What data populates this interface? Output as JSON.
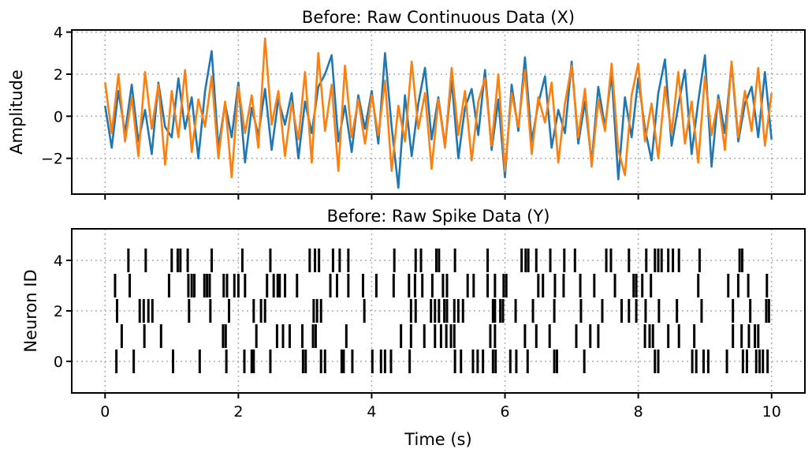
{
  "chart_data": [
    {
      "type": "line",
      "title": "Before: Raw Continuous Data (X)",
      "xlabel": "",
      "ylabel": "Amplitude",
      "xlim": [
        -0.5,
        10.5
      ],
      "ylim": [
        -3.7,
        4.1
      ],
      "xticks": [
        0,
        2,
        4,
        6,
        8,
        10
      ],
      "xtick_labels_shown": false,
      "yticks": [
        4,
        2,
        0,
        -2
      ],
      "ytick_labels": [
        "4",
        "2",
        "0",
        "−2"
      ],
      "grid": true,
      "x_start": 0,
      "x_step": 0.1,
      "series": [
        {
          "color": "#1f77b4",
          "values": [
            0.5,
            -1.5,
            1.2,
            -0.8,
            1.5,
            -1.2,
            0.3,
            -1.8,
            1.6,
            -0.5,
            -1.0,
            1.8,
            -0.6,
            0.9,
            -2.0,
            1.2,
            3.1,
            -1.5,
            0.6,
            -1.0,
            1.6,
            -2.2,
            0.4,
            -0.9,
            1.3,
            -1.6,
            0.8,
            -0.4,
            1.1,
            -2.0,
            0.7,
            -0.8,
            1.4,
            2.0,
            2.9,
            -1.2,
            0.5,
            -1.7,
            1.0,
            -0.6,
            1.2,
            -1.3,
            3.0,
            -0.5,
            -3.4,
            1.0,
            -1.9,
            0.6,
            2.3,
            -1.1,
            0.9,
            -1.4,
            1.7,
            -2.0,
            0.4,
            1.3,
            -0.9,
            2.2,
            -1.6,
            0.8,
            -2.9,
            1.5,
            -0.7,
            2.8,
            -1.2,
            0.6,
            1.9,
            -1.5,
            0.3,
            -0.8,
            2.6,
            -1.3,
            0.7,
            -2.2,
            1.4,
            -0.5,
            2.0,
            -3.0,
            0.9,
            -1.0,
            1.8,
            -0.6,
            -2.1,
            1.1,
            2.7,
            -1.4,
            0.5,
            2.2,
            -1.8,
            0.7,
            2.9,
            -2.4,
            1.0,
            -0.8,
            2.5,
            -1.2,
            0.6,
            1.4,
            -1.0,
            2.1,
            -1.1
          ]
        },
        {
          "color": "#ff7f0e",
          "values": [
            1.6,
            -0.8,
            2.0,
            -1.2,
            0.9,
            -1.9,
            2.1,
            -0.6,
            1.5,
            -2.3,
            1.2,
            -1.0,
            2.2,
            -1.7,
            0.8,
            -0.5,
            1.9,
            -2.0,
            0.7,
            -2.9,
            1.4,
            -0.8,
            1.0,
            -1.5,
            3.7,
            -0.4,
            1.2,
            -1.9,
            0.6,
            -1.1,
            2.1,
            -2.2,
            3.0,
            -0.7,
            1.5,
            -2.6,
            2.4,
            -1.0,
            0.8,
            -1.3,
            1.0,
            -0.9,
            1.7,
            -2.6,
            0.5,
            -1.2,
            2.6,
            -0.6,
            1.1,
            -2.5,
            0.8,
            -1.5,
            2.3,
            -0.9,
            1.2,
            -2.1,
            0.7,
            1.8,
            -1.4,
            2.0,
            -2.6,
            1.1,
            -0.5,
            2.2,
            -1.8,
            0.9,
            -0.3,
            1.6,
            -2.2,
            0.6,
            2.4,
            -1.0,
            1.3,
            -2.4,
            0.8,
            -0.7,
            2.5,
            -1.6,
            -2.8,
            1.0,
            2.5,
            -1.2,
            0.6,
            -2.0,
            1.4,
            -0.8,
            2.1,
            -1.3,
            0.7,
            -2.2,
            1.9,
            -0.9,
            0.8,
            -1.6,
            2.6,
            -1.0,
            1.2,
            -0.7,
            2.3,
            -1.4,
            1.1
          ]
        }
      ]
    },
    {
      "type": "raster",
      "title": "Before: Raw Spike Data (Y)",
      "xlabel": "Time (s)",
      "ylabel": "Neuron ID",
      "xlim": [
        -0.5,
        10.5
      ],
      "ylim": [
        -1.25,
        5.25
      ],
      "xticks": [
        0,
        2,
        4,
        6,
        8,
        10
      ],
      "xtick_labels": [
        "0",
        "2",
        "4",
        "6",
        "8",
        "10"
      ],
      "yticks": [
        4,
        2,
        0
      ],
      "ytick_labels": [
        "4",
        "2",
        "0"
      ],
      "grid": true,
      "color": "#000000",
      "neurons": [
        {
          "id": 0,
          "spike_times": [
            0.17,
            0.43,
            1.02,
            1.42,
            1.82,
            2.09,
            2.2,
            2.23,
            2.48,
            2.97,
            3.01,
            3.24,
            3.3,
            3.55,
            3.58,
            3.71,
            4.01,
            4.14,
            4.2,
            4.29,
            4.57,
            5.25,
            5.34,
            5.52,
            5.59,
            5.67,
            5.82,
            5.86,
            6.08,
            6.17,
            6.34,
            6.74,
            6.78,
            7.19,
            8.25,
            8.3,
            8.81,
            8.87,
            8.98,
            9.05,
            9.33,
            9.57,
            9.63,
            9.77,
            9.82,
            9.87,
            9.94
          ]
        },
        {
          "id": 1,
          "spike_times": [
            0.25,
            0.59,
            0.84,
            1.77,
            1.81,
            2.27,
            2.58,
            2.67,
            2.77,
            2.96,
            3.12,
            3.16,
            3.62,
            4.44,
            4.59,
            4.79,
            4.95,
            5.04,
            5.12,
            5.19,
            5.24,
            5.78,
            5.85,
            6.3,
            6.47,
            6.67,
            7.07,
            7.28,
            7.4,
            8.1,
            8.17,
            8.22,
            8.45,
            8.61,
            8.84,
            9.42,
            9.55,
            9.66,
            9.75,
            9.8
          ]
        },
        {
          "id": 2,
          "spike_times": [
            0.18,
            0.52,
            0.58,
            0.65,
            0.71,
            1.26,
            1.58,
            1.86,
            2.23,
            2.34,
            2.4,
            3.13,
            3.18,
            3.24,
            3.89,
            4.59,
            4.66,
            4.89,
            4.95,
            5.01,
            5.09,
            5.13,
            5.24,
            5.3,
            5.37,
            5.82,
            5.85,
            5.93,
            5.97,
            6.16,
            6.42,
            6.74,
            7.14,
            7.46,
            7.75,
            7.86,
            7.97,
            8.11,
            8.31,
            8.58,
            8.95,
            9.42,
            9.68,
            9.92,
            9.96
          ]
        },
        {
          "id": 3,
          "spike_times": [
            0.15,
            0.37,
            0.96,
            1.25,
            1.3,
            1.34,
            1.49,
            1.53,
            1.57,
            1.78,
            1.83,
            1.94,
            2.0,
            2.1,
            2.43,
            2.53,
            2.59,
            2.62,
            2.7,
            2.88,
            3.38,
            3.48,
            3.65,
            3.87,
            4.07,
            4.33,
            4.56,
            4.65,
            4.76,
            4.91,
            5.07,
            5.13,
            5.44,
            5.53,
            5.74,
            5.85,
            5.98,
            6.02,
            6.5,
            6.57,
            6.75,
            6.88,
            7.13,
            7.34,
            7.65,
            7.93,
            7.97,
            8.06,
            8.19,
            8.9,
            9.35,
            9.5,
            9.65,
            9.93
          ]
        },
        {
          "id": 4,
          "spike_times": [
            0.35,
            0.61,
            1.0,
            1.09,
            1.13,
            1.24,
            1.6,
            2.06,
            2.48,
            3.07,
            3.15,
            3.21,
            3.42,
            3.52,
            3.65,
            4.34,
            4.66,
            4.74,
            4.97,
            5.01,
            5.25,
            5.74,
            6.25,
            6.31,
            6.35,
            6.47,
            6.68,
            6.89,
            7.05,
            7.52,
            7.59,
            7.86,
            8.12,
            8.25,
            8.3,
            8.35,
            8.45,
            8.52,
            8.61,
            8.92,
            9.52,
            9.56
          ]
        }
      ]
    }
  ]
}
